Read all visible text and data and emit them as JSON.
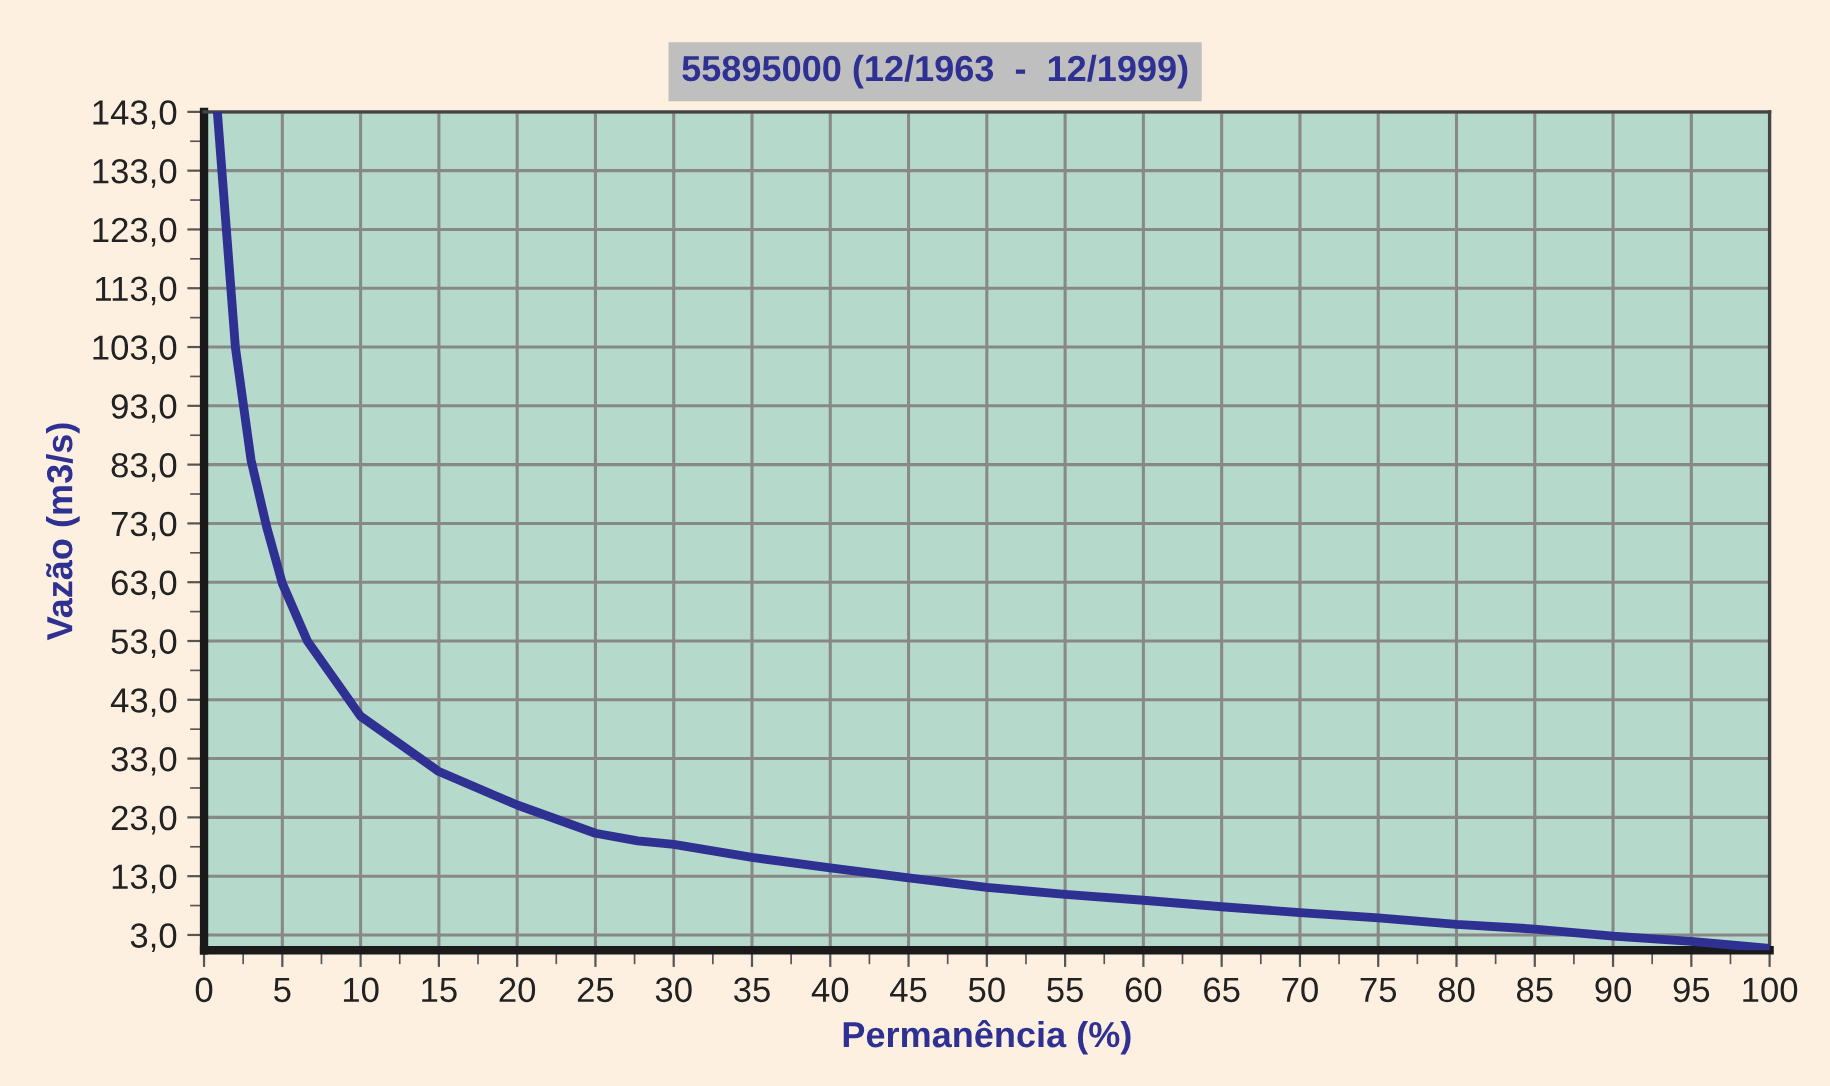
{
  "chart_data": {
    "type": "line",
    "title": "55895000 (12/1963  -  12/1999)",
    "xlabel": "Permanência (%)",
    "ylabel": "Vazão (m3/s)",
    "x": [
      0.85,
      2,
      3,
      4,
      5,
      6.6,
      10,
      15,
      20,
      25,
      27.7,
      30,
      35,
      40,
      45,
      50,
      55,
      60,
      65,
      70,
      75,
      80,
      85,
      90,
      95,
      100
    ],
    "series": [
      {
        "color": "#2e3192",
        "values": [
          143,
          103,
          83.8,
          72.4,
          62.8,
          53,
          40.2,
          30.8,
          25.1,
          20.3,
          19,
          18.4,
          16.2,
          14.4,
          12.7,
          11.1,
          9.9,
          8.9,
          7.8,
          6.8,
          5.9,
          4.8,
          4,
          2.8,
          1.9,
          0.7
        ]
      }
    ],
    "xlim": [
      0,
      100
    ],
    "ylim": [
      0.4,
      143
    ],
    "xticks": [
      0,
      {
        "value": 2.5,
        "label": null
      },
      5,
      {
        "value": 7.5,
        "label": null
      },
      10,
      {
        "value": 12.5,
        "label": null
      },
      15,
      {
        "value": 17.5,
        "label": null
      },
      20,
      {
        "value": 22.5,
        "label": null
      },
      25,
      {
        "value": 27.5,
        "label": null
      },
      30,
      {
        "value": 32.5,
        "label": null
      },
      35,
      {
        "value": 37.5,
        "label": null
      },
      40,
      {
        "value": 42.5,
        "label": null
      },
      45,
      {
        "value": 47.5,
        "label": null
      },
      50,
      {
        "value": 52.5,
        "label": null
      },
      55,
      {
        "value": 57.5,
        "label": null
      },
      60,
      {
        "value": 62.5,
        "label": null
      },
      65,
      {
        "value": 67.5,
        "label": null
      },
      70,
      {
        "value": 72.5,
        "label": null
      },
      75,
      {
        "value": 77.5,
        "label": null
      },
      80,
      {
        "value": 82.5,
        "label": null
      },
      85,
      {
        "value": 87.5,
        "label": null
      },
      90,
      {
        "value": 92.5,
        "label": null
      },
      95,
      {
        "value": 97.5,
        "label": null
      },
      100
    ],
    "yticks": [
      {
        "value": 3,
        "label": "3,0"
      },
      {
        "value": 8,
        "label": null
      },
      {
        "value": 13,
        "label": "13,0"
      },
      {
        "value": 18,
        "label": null
      },
      {
        "value": 23,
        "label": "23,0"
      },
      {
        "value": 28,
        "label": null
      },
      {
        "value": 33,
        "label": "33,0"
      },
      {
        "value": 38,
        "label": null
      },
      {
        "value": 43,
        "label": "43,0"
      },
      {
        "value": 48,
        "label": null
      },
      {
        "value": 53,
        "label": "53,0"
      },
      {
        "value": 58,
        "label": null
      },
      {
        "value": 63,
        "label": "63,0"
      },
      {
        "value": 68,
        "label": null
      },
      {
        "value": 73,
        "label": "73,0"
      },
      {
        "value": 78,
        "label": null
      },
      {
        "value": 83,
        "label": "83,0"
      },
      {
        "value": 88,
        "label": null
      },
      {
        "value": 93,
        "label": "93,0"
      },
      {
        "value": 98,
        "label": null
      },
      {
        "value": 103,
        "label": "103,0"
      },
      {
        "value": 108,
        "label": null
      },
      {
        "value": 113,
        "label": "113,0"
      },
      {
        "value": 118,
        "label": null
      },
      {
        "value": 123,
        "label": "123,0"
      },
      {
        "value": 128,
        "label": null
      },
      {
        "value": 133,
        "label": "133,0"
      },
      {
        "value": 138,
        "label": null
      },
      {
        "value": 143,
        "label": "143,0"
      }
    ],
    "grid": true,
    "marker": "none",
    "line_style": "solid"
  }
}
